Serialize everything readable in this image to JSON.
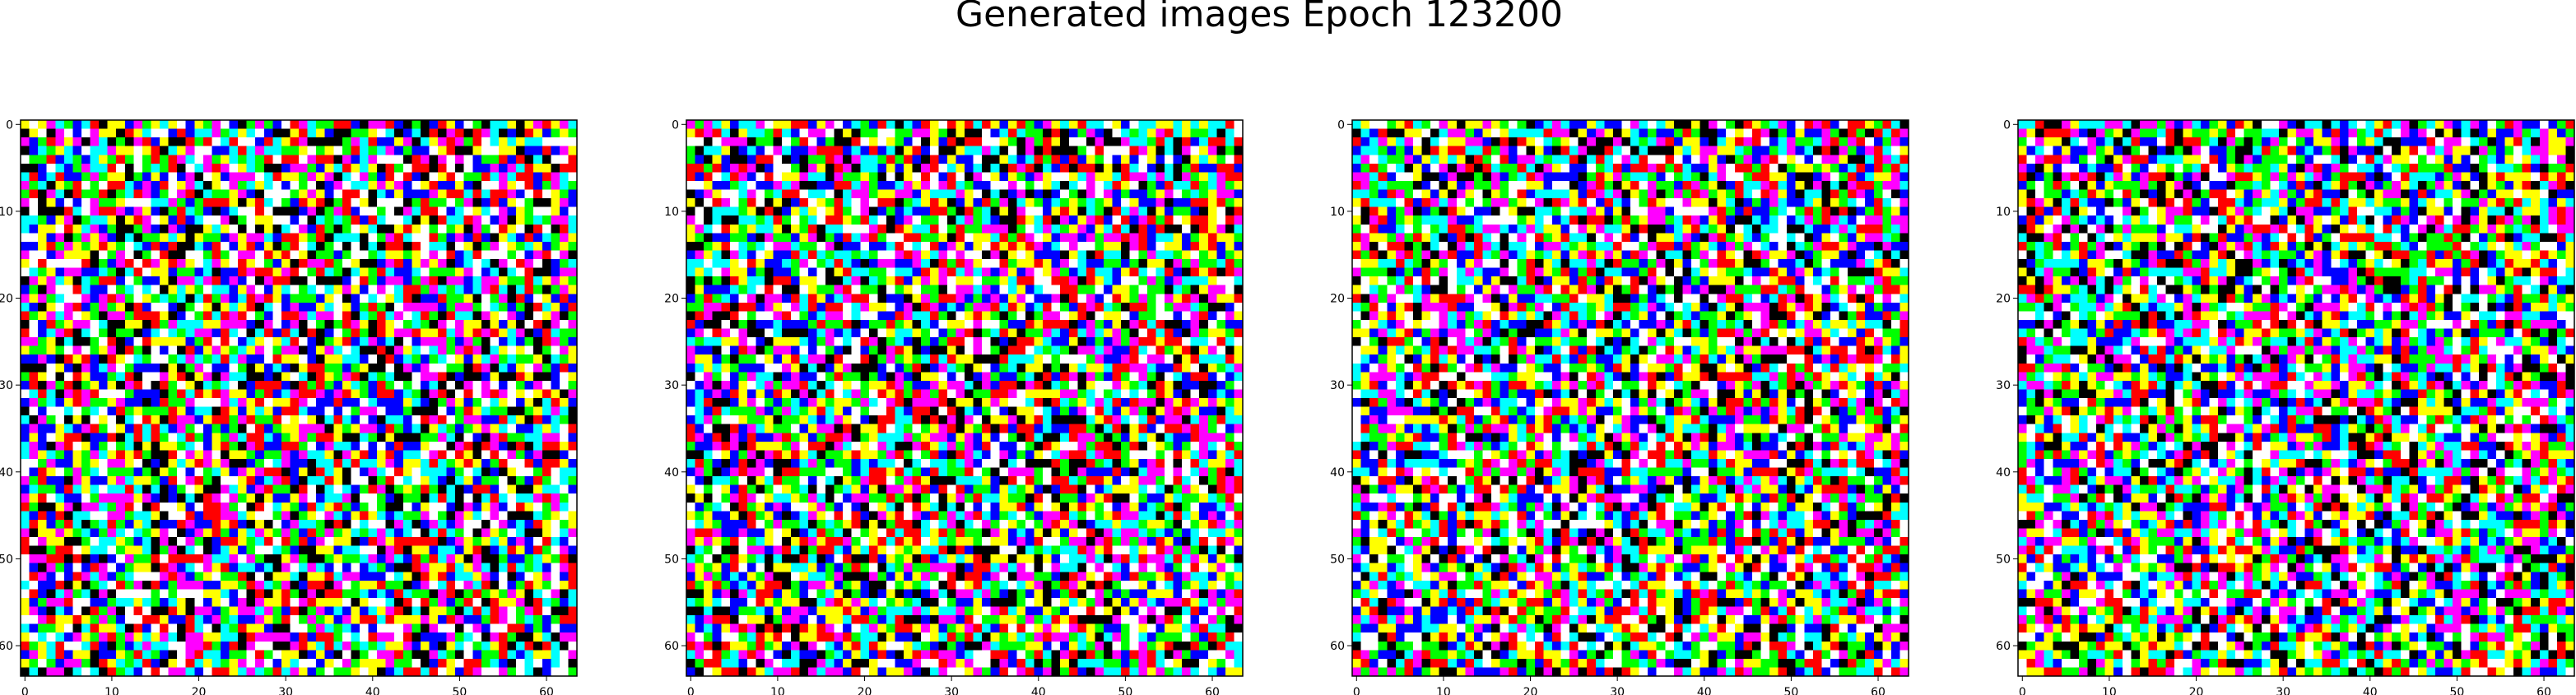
{
  "figure": {
    "title": "Generated images Epoch 123200"
  },
  "chart_data": [
    {
      "type": "heatmap",
      "description_visible": "64x64 RGB image of colored noise",
      "grid_size": [
        64,
        64
      ],
      "xlim": [
        0,
        63
      ],
      "ylim": [
        63,
        0
      ],
      "xticks": [
        0,
        10,
        20,
        30,
        40,
        50,
        60
      ],
      "yticks": [
        0,
        10,
        20,
        30,
        40,
        50,
        60
      ],
      "palette": [
        "#000000",
        "#ff0000",
        "#00ff00",
        "#0000ff",
        "#ffff00",
        "#ff00ff",
        "#00ffff",
        "#ffffff"
      ]
    },
    {
      "type": "heatmap",
      "grid_size": [
        64,
        64
      ],
      "xlim": [
        0,
        63
      ],
      "ylim": [
        63,
        0
      ],
      "xticks": [
        0,
        10,
        20,
        30,
        40,
        50,
        60
      ],
      "yticks": [
        0,
        10,
        20,
        30,
        40,
        50,
        60
      ],
      "palette": [
        "#000000",
        "#ff0000",
        "#00ff00",
        "#0000ff",
        "#ffff00",
        "#ff00ff",
        "#00ffff",
        "#ffffff"
      ]
    },
    {
      "type": "heatmap",
      "grid_size": [
        64,
        64
      ],
      "xlim": [
        0,
        63
      ],
      "ylim": [
        63,
        0
      ],
      "xticks": [
        0,
        10,
        20,
        30,
        40,
        50,
        60
      ],
      "yticks": [
        0,
        10,
        20,
        30,
        40,
        50,
        60
      ],
      "palette": [
        "#000000",
        "#ff0000",
        "#00ff00",
        "#0000ff",
        "#ffff00",
        "#ff00ff",
        "#00ffff",
        "#ffffff"
      ]
    },
    {
      "type": "heatmap",
      "grid_size": [
        64,
        64
      ],
      "xlim": [
        0,
        63
      ],
      "ylim": [
        63,
        0
      ],
      "xticks": [
        0,
        10,
        20,
        30,
        40,
        50,
        60
      ],
      "yticks": [
        0,
        10,
        20,
        30,
        40,
        50,
        60
      ],
      "palette": [
        "#000000",
        "#ff0000",
        "#00ff00",
        "#0000ff",
        "#ffff00",
        "#ff00ff",
        "#00ffff",
        "#ffffff"
      ]
    }
  ]
}
